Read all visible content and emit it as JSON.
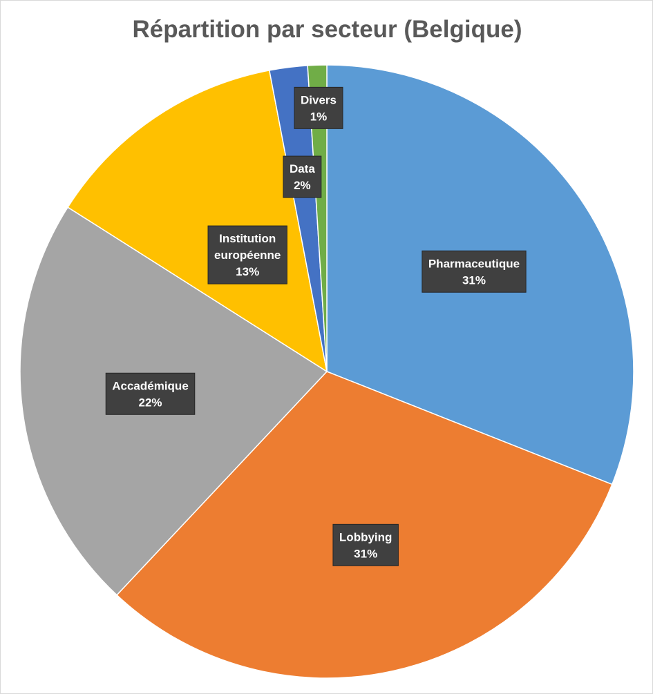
{
  "chart_data": {
    "type": "pie",
    "title": "Répartition par secteur (Belgique)",
    "slices": [
      {
        "name": "Pharmaceutique",
        "lines": [
          "Pharmaceutique"
        ],
        "value": 31,
        "label": "31%",
        "color": "#5b9bd5"
      },
      {
        "name": "Lobbying",
        "lines": [
          "Lobbying"
        ],
        "value": 31,
        "label": "31%",
        "color": "#ed7d31"
      },
      {
        "name": "Accadémique",
        "lines": [
          "Accadémique"
        ],
        "value": 22,
        "label": "22%",
        "color": "#a5a5a5"
      },
      {
        "name": "Institution européenne",
        "lines": [
          "Institution",
          "européenne"
        ],
        "value": 13,
        "label": "13%",
        "color": "#ffc000"
      },
      {
        "name": "Data",
        "lines": [
          "Data"
        ],
        "value": 2,
        "label": "2%",
        "color": "#4472c4"
      },
      {
        "name": "Divers",
        "lines": [
          "Divers"
        ],
        "value": 1,
        "label": "1%",
        "color": "#70ad47"
      }
    ],
    "start_angle_deg": 0,
    "direction": "clockwise",
    "legend": "none",
    "data_labels": "category-and-percent"
  }
}
